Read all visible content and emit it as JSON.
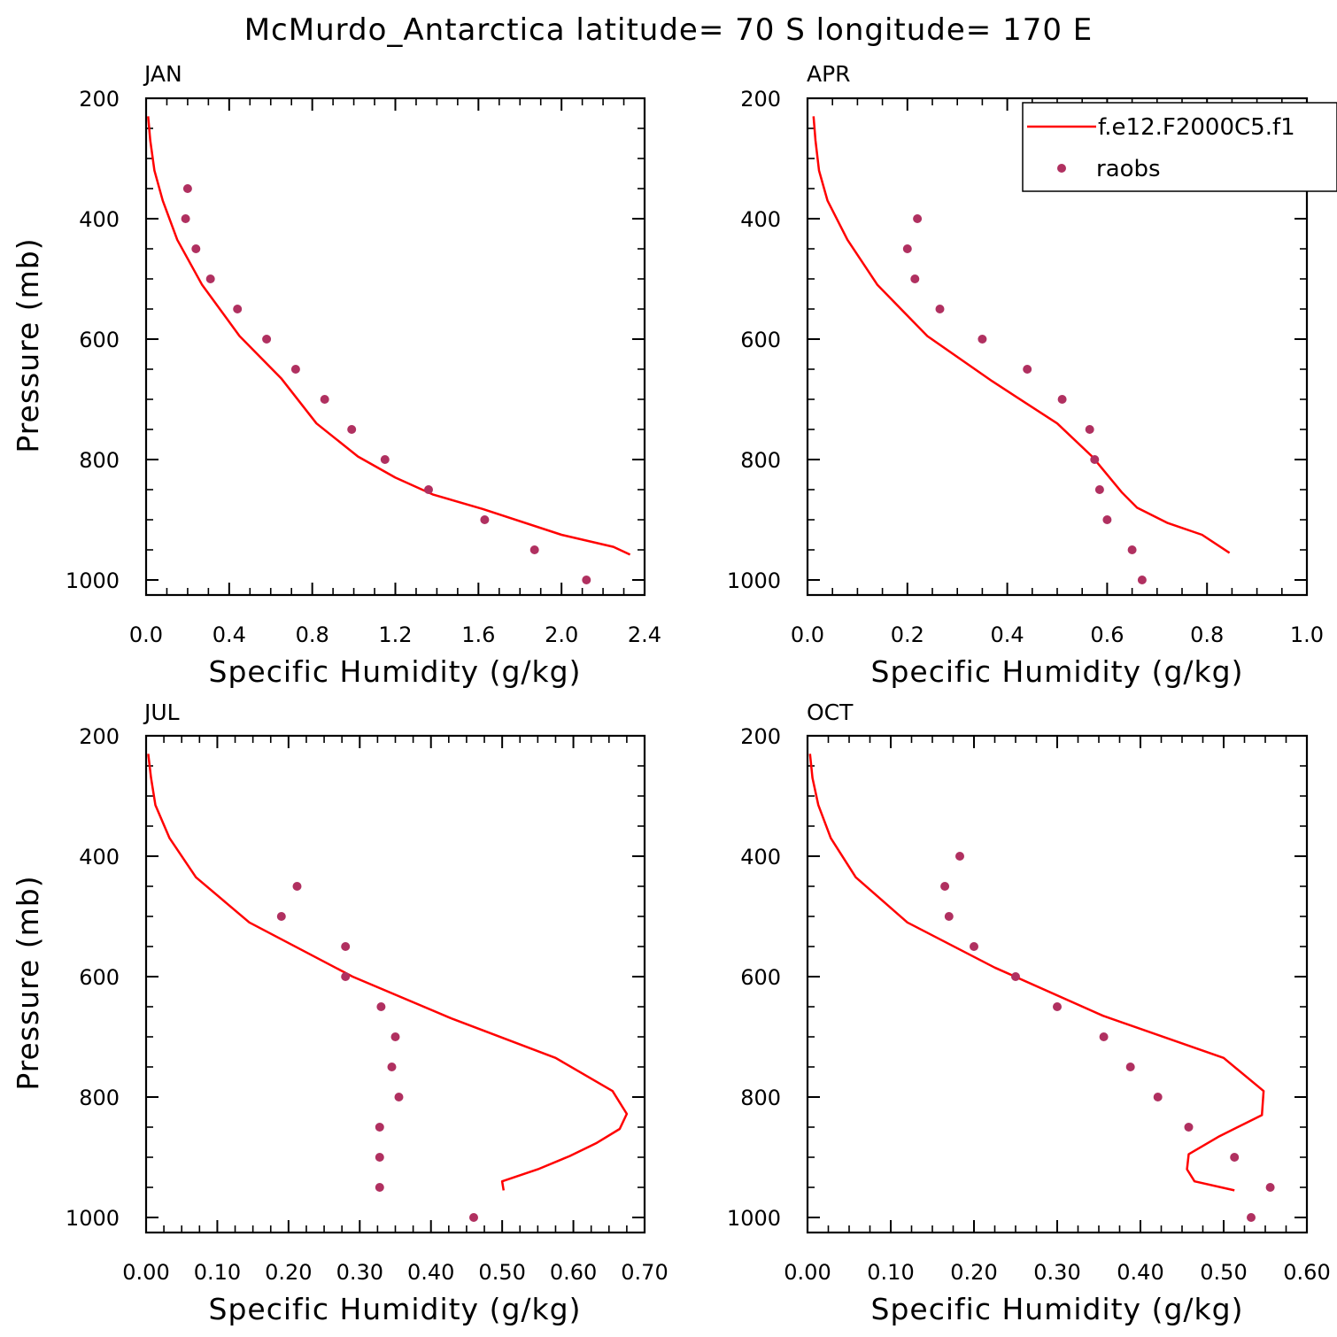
{
  "title": "McMurdo_Antarctica  latitude= 70 S longitude= 170 E",
  "colors": {
    "model": "#ff0000",
    "obs": "#b03060",
    "axis": "#000000"
  },
  "legend": {
    "model_label": "f.e12.F2000C5.f1",
    "obs_label": "raobs",
    "placement": "top-right"
  },
  "chart_data": [
    {
      "type": "line+scatter",
      "panel": "JAN",
      "xlabel": "Specific Humidity (g/kg)",
      "ylabel": "Pressure (mb)",
      "xlim": [
        0.0,
        2.4
      ],
      "ylim": [
        1025,
        200
      ],
      "xticks": [
        "0.0",
        "0.4",
        "0.8",
        "1.2",
        "1.6",
        "2.0",
        "2.4"
      ],
      "yticks": [
        "200",
        "400",
        "600",
        "800",
        "1000"
      ],
      "model": {
        "name": "f.e12.F2000C5.f1",
        "x": [
          0.01,
          0.02,
          0.04,
          0.08,
          0.15,
          0.27,
          0.45,
          0.65,
          0.82,
          1.02,
          1.2,
          1.38,
          1.62,
          2.0,
          2.25,
          2.33
        ],
        "p": [
          230,
          270,
          320,
          370,
          435,
          510,
          595,
          665,
          740,
          795,
          830,
          858,
          882,
          925,
          945,
          958
        ]
      },
      "obs": {
        "name": "raobs",
        "x": [
          0.2,
          0.19,
          0.24,
          0.31,
          0.44,
          0.58,
          0.72,
          0.86,
          0.99,
          1.15,
          1.36,
          1.63,
          1.87,
          2.12
        ],
        "p": [
          350,
          400,
          450,
          500,
          550,
          600,
          650,
          700,
          750,
          800,
          850,
          900,
          950,
          1000
        ]
      }
    },
    {
      "type": "line+scatter",
      "panel": "APR",
      "xlabel": "Specific Humidity (g/kg)",
      "ylabel": "Pressure (mb)",
      "xlim": [
        0.0,
        1.0
      ],
      "ylim": [
        1025,
        200
      ],
      "xticks": [
        "0.0",
        "0.2",
        "0.4",
        "0.6",
        "0.8",
        "1.0"
      ],
      "yticks": [
        "200",
        "400",
        "600",
        "800",
        "1000"
      ],
      "model": {
        "name": "f.e12.F2000C5.f1",
        "x": [
          0.012,
          0.016,
          0.023,
          0.04,
          0.08,
          0.14,
          0.24,
          0.37,
          0.5,
          0.57,
          0.63,
          0.66,
          0.72,
          0.79,
          0.845
        ],
        "p": [
          230,
          270,
          320,
          370,
          435,
          510,
          595,
          670,
          740,
          795,
          855,
          880,
          905,
          925,
          955
        ]
      },
      "obs": {
        "name": "raobs",
        "x": [
          0.22,
          0.2,
          0.215,
          0.265,
          0.35,
          0.44,
          0.51,
          0.565,
          0.575,
          0.585,
          0.6,
          0.65,
          0.67
        ],
        "p": [
          400,
          450,
          500,
          550,
          600,
          650,
          700,
          750,
          800,
          850,
          900,
          950,
          1000
        ]
      }
    },
    {
      "type": "line+scatter",
      "panel": "JUL",
      "xlabel": "Specific Humidity (g/kg)",
      "ylabel": "Pressure (mb)",
      "xlim": [
        0.0,
        0.7
      ],
      "ylim": [
        1025,
        200
      ],
      "xticks": [
        "0.00",
        "0.10",
        "0.20",
        "0.30",
        "0.40",
        "0.50",
        "0.60",
        "0.70"
      ],
      "yticks": [
        "200",
        "400",
        "600",
        "800",
        "1000"
      ],
      "model": {
        "name": "f.e12.F2000C5.f1",
        "x": [
          0.003,
          0.007,
          0.013,
          0.033,
          0.07,
          0.145,
          0.29,
          0.43,
          0.575,
          0.655,
          0.675,
          0.665,
          0.633,
          0.595,
          0.55,
          0.5,
          0.502
        ],
        "p": [
          230,
          270,
          315,
          370,
          435,
          510,
          600,
          670,
          735,
          790,
          828,
          853,
          876,
          898,
          920,
          940,
          955
        ]
      },
      "obs": {
        "name": "raobs",
        "x": [
          0.212,
          0.19,
          0.28,
          0.28,
          0.33,
          0.35,
          0.345,
          0.355,
          0.328,
          0.328,
          0.328,
          0.46
        ],
        "p": [
          450,
          500,
          550,
          600,
          650,
          700,
          750,
          800,
          850,
          900,
          950,
          1000
        ]
      }
    },
    {
      "type": "line+scatter",
      "panel": "OCT",
      "xlabel": "Specific Humidity (g/kg)",
      "ylabel": "Pressure (mb)",
      "xlim": [
        0.0,
        0.6
      ],
      "ylim": [
        1025,
        200
      ],
      "xticks": [
        "0.00",
        "0.10",
        "0.20",
        "0.30",
        "0.40",
        "0.50",
        "0.60"
      ],
      "yticks": [
        "200",
        "400",
        "600",
        "800",
        "1000"
      ],
      "model": {
        "name": "f.e12.F2000C5.f1",
        "x": [
          0.003,
          0.006,
          0.013,
          0.028,
          0.058,
          0.12,
          0.225,
          0.355,
          0.5,
          0.548,
          0.546,
          0.495,
          0.458,
          0.456,
          0.465,
          0.513
        ],
        "p": [
          230,
          270,
          315,
          370,
          435,
          510,
          585,
          665,
          735,
          790,
          830,
          865,
          895,
          920,
          940,
          955
        ]
      },
      "obs": {
        "name": "raobs",
        "x": [
          0.183,
          0.165,
          0.17,
          0.2,
          0.25,
          0.3,
          0.356,
          0.388,
          0.421,
          0.458,
          0.513,
          0.556,
          0.533
        ],
        "p": [
          400,
          450,
          500,
          550,
          600,
          650,
          700,
          750,
          800,
          850,
          900,
          950,
          1000
        ]
      }
    }
  ]
}
